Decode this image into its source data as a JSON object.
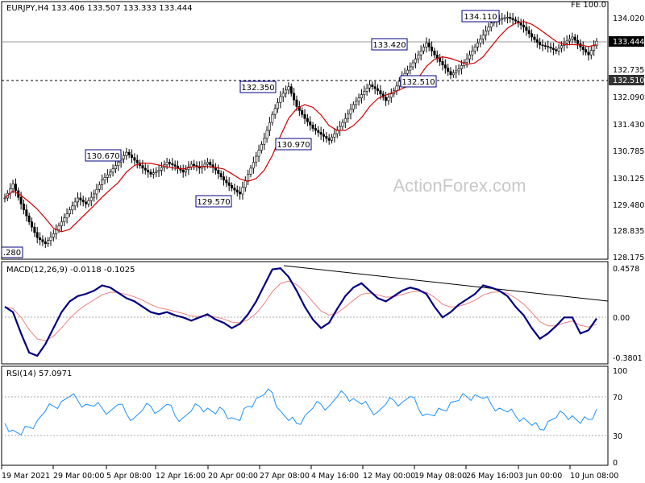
{
  "header": {
    "symbol_info": "EURJPY,H4  133.406 133.507 133.333 133.444",
    "fe_label": "FE 100.0",
    "watermark": "ActionForex.com"
  },
  "colors": {
    "candle": "#000000",
    "ma": "#d00000",
    "macd": "#000080",
    "signal": "#f08080",
    "rsi": "#1e90ff",
    "callout_border": "#000080"
  },
  "chart_data": [
    {
      "type": "candlestick",
      "title": "EURJPY,H4",
      "ohlc_last": {
        "open": 133.406,
        "high": 133.507,
        "low": 133.333,
        "close": 133.444
      },
      "ylim": [
        128.0,
        134.4
      ],
      "y_ticks": [
        "134.020",
        "133.444",
        "132.735",
        "132.510",
        "132.090",
        "131.430",
        "130.785",
        "130.125",
        "129.480",
        "128.835",
        "128.175"
      ],
      "current_price": "133.444",
      "horizontal_level": "132.510",
      "close_series": [
        129.5,
        129.85,
        129.35,
        128.9,
        128.5,
        128.35,
        128.6,
        128.9,
        129.2,
        129.5,
        129.35,
        129.6,
        129.95,
        130.15,
        130.4,
        130.65,
        130.45,
        130.25,
        130.1,
        130.2,
        130.4,
        130.3,
        130.15,
        130.35,
        130.25,
        130.4,
        130.2,
        129.95,
        129.75,
        129.6,
        130.1,
        130.55,
        131.0,
        131.6,
        132.05,
        132.3,
        131.8,
        131.5,
        131.25,
        131.1,
        130.95,
        131.2,
        131.5,
        131.85,
        132.1,
        132.35,
        132.2,
        131.95,
        132.2,
        132.55,
        132.8,
        133.1,
        133.4,
        133.1,
        132.85,
        132.6,
        132.75,
        133.0,
        133.3,
        133.6,
        133.9,
        134.0,
        134.05,
        133.95,
        133.8,
        133.55,
        133.35,
        133.3,
        133.2,
        133.4,
        133.55,
        133.3,
        133.1,
        133.444
      ],
      "annotations": [
        "130.670",
        "129.570",
        "132.350",
        "130.970",
        "133.420",
        "132.510",
        "134.110",
        ".280"
      ]
    },
    {
      "type": "line",
      "title": "MACD(12,26,9) -0.0118 -0.1025",
      "macd": -0.0118,
      "signal": -0.1025,
      "ylim": [
        -0.42,
        0.5
      ],
      "y_ticks": [
        "0.4578",
        "0.00",
        "-0.3801"
      ],
      "series": [
        0.1,
        0.05,
        -0.15,
        -0.33,
        -0.36,
        -0.25,
        -0.1,
        0.05,
        0.15,
        0.2,
        0.22,
        0.25,
        0.3,
        0.28,
        0.23,
        0.18,
        0.15,
        0.1,
        0.05,
        0.03,
        0.05,
        0.02,
        0.0,
        -0.03,
        0.0,
        0.03,
        -0.02,
        -0.05,
        -0.1,
        -0.06,
        0.03,
        0.15,
        0.3,
        0.45,
        0.46,
        0.38,
        0.25,
        0.1,
        -0.02,
        -0.1,
        -0.05,
        0.08,
        0.2,
        0.28,
        0.32,
        0.25,
        0.18,
        0.15,
        0.2,
        0.25,
        0.28,
        0.26,
        0.22,
        0.1,
        0.0,
        0.05,
        0.12,
        0.17,
        0.22,
        0.3,
        0.28,
        0.25,
        0.2,
        0.1,
        0.02,
        -0.1,
        -0.2,
        -0.15,
        -0.08,
        0.0,
        0.0,
        -0.15,
        -0.12,
        -0.01
      ]
    },
    {
      "type": "line",
      "title": "RSI(14) 57.0971",
      "value": 57.0971,
      "ylim": [
        0,
        100
      ],
      "y_ticks": [
        "100",
        "70",
        "30",
        "0"
      ],
      "series": [
        42,
        35,
        30,
        38,
        45,
        55,
        60,
        65,
        70,
        66,
        62,
        60,
        58,
        55,
        62,
        52,
        48,
        56,
        60,
        55,
        62,
        50,
        48,
        55,
        60,
        58,
        52,
        56,
        48,
        45,
        60,
        68,
        72,
        74,
        55,
        45,
        42,
        50,
        58,
        62,
        60,
        70,
        72,
        68,
        62,
        58,
        54,
        62,
        66,
        64,
        70,
        58,
        52,
        50,
        56,
        64,
        66,
        70,
        72,
        68,
        62,
        58,
        54,
        50,
        48,
        40,
        36,
        44,
        48,
        52,
        50,
        42,
        46,
        57
      ]
    }
  ],
  "x_axis": {
    "labels": [
      "19 Mar 2021",
      "29 Mar 00:00",
      "5 Apr 08:00",
      "12 Apr 16:00",
      "20 Apr 00:00",
      "27 Apr 08:00",
      "4 May 16:00",
      "12 May 00:00",
      "19 May 08:00",
      "26 May 16:00",
      "3 Jun 00:00",
      "10 Jun 08:00"
    ]
  }
}
